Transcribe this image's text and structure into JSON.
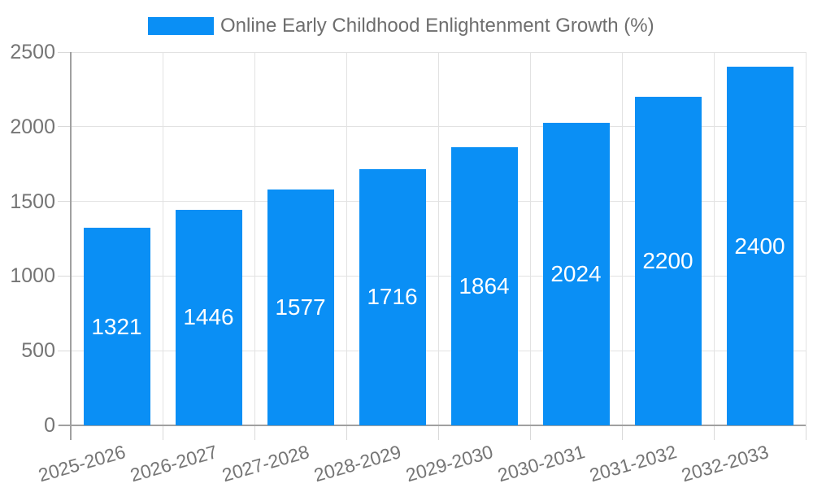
{
  "chart_data": {
    "type": "bar",
    "title": "Online Early Childhood Enlightenment Growth (%)",
    "legend_position": "top",
    "categories": [
      "2025-2026",
      "2026-2027",
      "2027-2028",
      "2028-2029",
      "2029-2030",
      "2030-2031",
      "2031-2032",
      "2032-2033"
    ],
    "values": [
      1321,
      1446,
      1577,
      1716,
      1864,
      2024,
      2200,
      2400
    ],
    "bar_value_labels": [
      "1321",
      "1446",
      "1577",
      "1716",
      "1864",
      "2024",
      "2200",
      "2400"
    ],
    "ylim": [
      0,
      2500
    ],
    "yticks": [
      0,
      500,
      1000,
      1500,
      2000,
      2500
    ],
    "ytick_labels": [
      "0",
      "500",
      "1000",
      "1500",
      "2000",
      "2500"
    ],
    "grid": true,
    "x_label_rotation_deg": -16,
    "colors": {
      "bar": "#0a8ff5",
      "bar_label": "#ffffff",
      "axis_text": "#757575",
      "legend_text": "#6e6e6e",
      "gridline": "#e2e2e2",
      "tick": "#d9d9d9",
      "axis_line": "#a0a0a0",
      "background": "#ffffff"
    }
  }
}
